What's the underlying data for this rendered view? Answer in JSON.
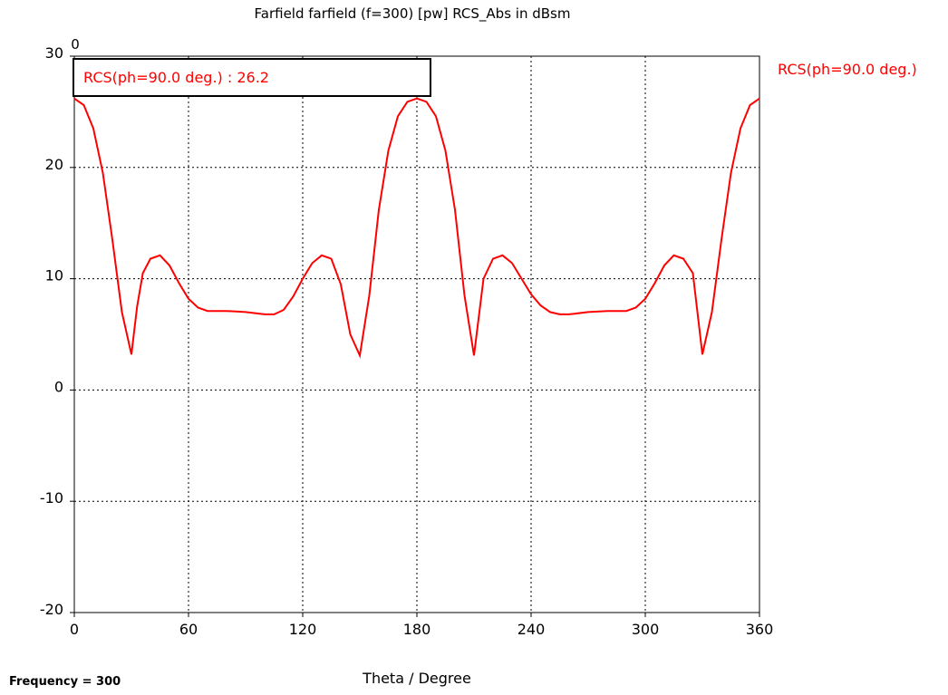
{
  "chart_data": {
    "type": "line",
    "title": "Farfield farfield (f=300) [pw] RCS_Abs in dBsm",
    "xlabel": "Theta / Degree",
    "ylabel": "",
    "xlim": [
      0,
      360
    ],
    "ylim": [
      -20,
      30
    ],
    "xticks": [
      0,
      60,
      120,
      180,
      240,
      300,
      360
    ],
    "yticks": [
      -20,
      -10,
      0,
      10,
      20,
      30
    ],
    "y_top_extra_label": "0",
    "grid": true,
    "legend": {
      "position": "top-right",
      "entries": [
        "RCS(ph=90.0 deg.)"
      ]
    },
    "annotation": "RCS(ph=90.0 deg.) : 26.2",
    "footer": "Frequency = 300",
    "colors": {
      "series": "#ff0000",
      "axes": "#000000",
      "grid": "#000000",
      "annotation_border": "#000000"
    },
    "series": [
      {
        "name": "RCS(ph=90.0 deg.)",
        "x": [
          0,
          5,
          10,
          15,
          20,
          25,
          30,
          33,
          36,
          40,
          45,
          50,
          55,
          60,
          65,
          70,
          80,
          90,
          100,
          105,
          110,
          115,
          120,
          125,
          130,
          135,
          140,
          145,
          150,
          155,
          160,
          165,
          170,
          175,
          180,
          185,
          190,
          195,
          200,
          205,
          210,
          215,
          220,
          225,
          230,
          235,
          240,
          245,
          250,
          255,
          260,
          270,
          280,
          290,
          295,
          300,
          305,
          310,
          315,
          320,
          325,
          330,
          335,
          340,
          345,
          350,
          355,
          360
        ],
        "y": [
          26.2,
          25.6,
          23.5,
          19.5,
          13.5,
          7.0,
          3.2,
          7.5,
          10.5,
          11.8,
          12.1,
          11.2,
          9.6,
          8.2,
          7.4,
          7.1,
          7.1,
          7.0,
          6.8,
          6.8,
          7.2,
          8.4,
          10.0,
          11.4,
          12.1,
          11.8,
          9.5,
          5.0,
          3.1,
          8.5,
          16.2,
          21.5,
          24.6,
          25.9,
          26.2,
          25.9,
          24.6,
          21.5,
          16.2,
          8.5,
          3.1,
          10.0,
          11.8,
          12.1,
          11.4,
          10.0,
          8.6,
          7.6,
          7.0,
          6.8,
          6.8,
          7.0,
          7.1,
          7.1,
          7.4,
          8.2,
          9.6,
          11.2,
          12.1,
          11.8,
          10.5,
          3.2,
          7.0,
          13.5,
          19.5,
          23.5,
          25.6,
          26.2
        ]
      }
    ]
  }
}
